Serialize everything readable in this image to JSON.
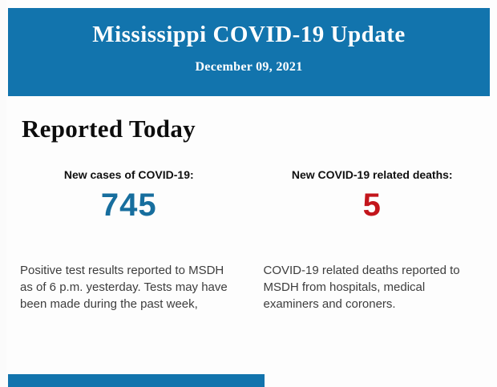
{
  "colors": {
    "banner_blue": "#1274AD",
    "cases_blue": "#176E9E",
    "deaths_red": "#C3161C"
  },
  "header": {
    "title": "Mississippi COVID-19 Update",
    "date": "December 09, 2021"
  },
  "section": {
    "title": "Reported Today"
  },
  "stats": [
    {
      "label": "New cases of COVID-19:",
      "value": "745",
      "description": "Positive test results reported to MSDH as of 6 p.m. yesterday. Tests may have been made during the past week,"
    },
    {
      "label": "New COVID-19 related deaths:",
      "value": "5",
      "description": "COVID-19 related deaths reported to MSDH from hospitals, medical examiners and coroners."
    }
  ]
}
